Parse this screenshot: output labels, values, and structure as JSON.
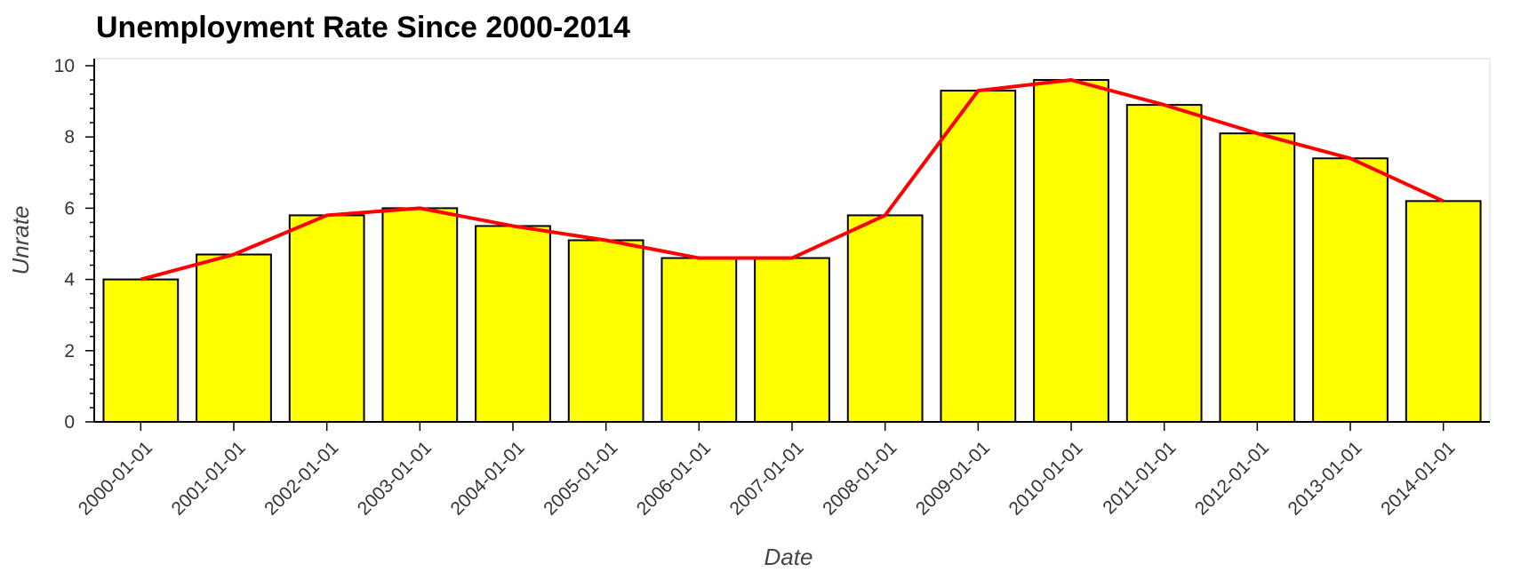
{
  "chart_data": {
    "type": "bar",
    "title": "Unemployment Rate Since 2000-2014",
    "xlabel": "Date",
    "ylabel": "Unrate",
    "categories": [
      "2000-01-01",
      "2001-01-01",
      "2002-01-01",
      "2003-01-01",
      "2004-01-01",
      "2005-01-01",
      "2006-01-01",
      "2007-01-01",
      "2008-01-01",
      "2009-01-01",
      "2010-01-01",
      "2011-01-01",
      "2012-01-01",
      "2013-01-01",
      "2014-01-01"
    ],
    "values": [
      4.0,
      4.7,
      5.8,
      6.0,
      5.5,
      5.1,
      4.6,
      4.6,
      5.8,
      9.3,
      9.6,
      8.9,
      8.1,
      7.4,
      6.2
    ],
    "line_series": {
      "values": [
        4.0,
        4.7,
        5.8,
        6.0,
        5.5,
        5.1,
        4.6,
        4.6,
        5.8,
        9.3,
        9.6,
        8.9,
        8.1,
        7.4,
        6.2
      ]
    },
    "ylim": [
      0,
      10
    ],
    "yticks": [
      0,
      2,
      4,
      6,
      8,
      10
    ],
    "grid": false,
    "legend": "none",
    "colors": {
      "bar_fill": "#ffff00",
      "bar_stroke": "#000000",
      "line": "#ff0000",
      "axis": "#000000",
      "frame": "#e5e5e5"
    }
  }
}
